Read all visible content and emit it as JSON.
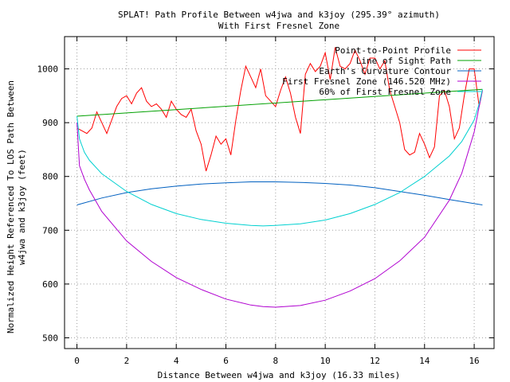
{
  "chart_data": {
    "type": "line",
    "title": "SPLAT! Path Profile Between w4jwa and k3joy (295.39° azimuth)",
    "subtitle": "With First Fresnel Zone",
    "xlabel": "Distance Between w4jwa and k3joy (16.33 miles)",
    "ylabel_line1": "Normalized Height Referenced To LOS Path Between",
    "ylabel_line2": "w4jwa and k3joy (feet)",
    "xlim": [
      -0.5,
      16.8
    ],
    "ylim": [
      480,
      1060
    ],
    "xticks": [
      0,
      2,
      4,
      6,
      8,
      10,
      12,
      14,
      16
    ],
    "yticks": [
      500,
      600,
      700,
      800,
      900,
      1000
    ],
    "grid": true,
    "legend_position": "top-right",
    "series": [
      {
        "name": "Point-to-Point Profile",
        "color": "#ff0000",
        "x": [
          0.0,
          0.2,
          0.4,
          0.6,
          0.8,
          1.0,
          1.2,
          1.4,
          1.6,
          1.8,
          2.0,
          2.2,
          2.4,
          2.6,
          2.8,
          3.0,
          3.2,
          3.4,
          3.6,
          3.8,
          4.0,
          4.2,
          4.4,
          4.6,
          4.8,
          5.0,
          5.2,
          5.4,
          5.6,
          5.8,
          6.0,
          6.2,
          6.4,
          6.6,
          6.8,
          7.0,
          7.2,
          7.4,
          7.6,
          7.8,
          8.0,
          8.2,
          8.4,
          8.6,
          8.8,
          9.0,
          9.2,
          9.4,
          9.6,
          9.8,
          10.0,
          10.2,
          10.4,
          10.6,
          10.8,
          11.0,
          11.2,
          11.4,
          11.6,
          11.8,
          12.0,
          12.2,
          12.4,
          12.6,
          12.8,
          13.0,
          13.2,
          13.4,
          13.6,
          13.8,
          14.0,
          14.2,
          14.4,
          14.6,
          14.8,
          15.0,
          15.2,
          15.4,
          15.6,
          15.8,
          16.0,
          16.2,
          16.33
        ],
        "y": [
          890,
          885,
          880,
          890,
          920,
          900,
          880,
          905,
          930,
          945,
          950,
          935,
          955,
          965,
          940,
          930,
          935,
          925,
          910,
          940,
          925,
          915,
          910,
          925,
          885,
          860,
          810,
          840,
          875,
          860,
          870,
          840,
          905,
          960,
          1005,
          985,
          965,
          1000,
          950,
          940,
          930,
          960,
          985,
          955,
          910,
          880,
          990,
          1010,
          995,
          1005,
          1030,
          980,
          1040,
          1005,
          1000,
          1010,
          1035,
          1015,
          990,
          1020,
          1020,
          1000,
          1015,
          960,
          930,
          900,
          850,
          840,
          845,
          880,
          860,
          835,
          855,
          950,
          960,
          930,
          870,
          890,
          950,
          1000,
          1000,
          930,
          960
        ]
      },
      {
        "name": "Line of Sight Path",
        "color": "#00a000",
        "x": [
          0,
          16.33
        ],
        "y": [
          912,
          962
        ]
      },
      {
        "name": "Earth's Curvature Contour",
        "color": "#0060c0",
        "x": [
          0,
          1,
          2,
          3,
          4,
          5,
          6,
          7,
          7.5,
          8,
          9,
          10,
          11,
          12,
          13,
          14,
          15,
          16.33
        ],
        "y": [
          747,
          760,
          770,
          777,
          782,
          786,
          788,
          790,
          790,
          790,
          789,
          787,
          784,
          779,
          772,
          765,
          757,
          747
        ]
      },
      {
        "name": "First Fresnel Zone (146.520 MHz)",
        "color": "#b000d0",
        "x": [
          0.0,
          0.1,
          0.3,
          0.5,
          1.0,
          2.0,
          3.0,
          4.0,
          5.0,
          6.0,
          7.0,
          7.5,
          8.0,
          9.0,
          10.0,
          11.0,
          12.0,
          13.0,
          14.0,
          15.0,
          15.5,
          16.0,
          16.2,
          16.33
        ],
        "y": [
          900,
          820,
          795,
          775,
          735,
          680,
          642,
          612,
          590,
          572,
          561,
          558,
          557,
          560,
          570,
          587,
          610,
          643,
          687,
          756,
          806,
          883,
          930,
          960
        ]
      },
      {
        "name": "60% of First Fresnel Zone",
        "color": "#00d0d0",
        "x": [
          0.0,
          0.1,
          0.3,
          0.5,
          1.0,
          2.0,
          3.0,
          4.0,
          5.0,
          6.0,
          7.0,
          7.5,
          8.0,
          9.0,
          10.0,
          11.0,
          12.0,
          13.0,
          14.0,
          15.0,
          15.5,
          16.0,
          16.2,
          16.33
        ],
        "y": [
          912,
          870,
          845,
          830,
          805,
          772,
          748,
          731,
          720,
          713,
          709,
          708,
          709,
          712,
          719,
          731,
          748,
          770,
          800,
          838,
          865,
          905,
          935,
          962
        ]
      }
    ]
  }
}
